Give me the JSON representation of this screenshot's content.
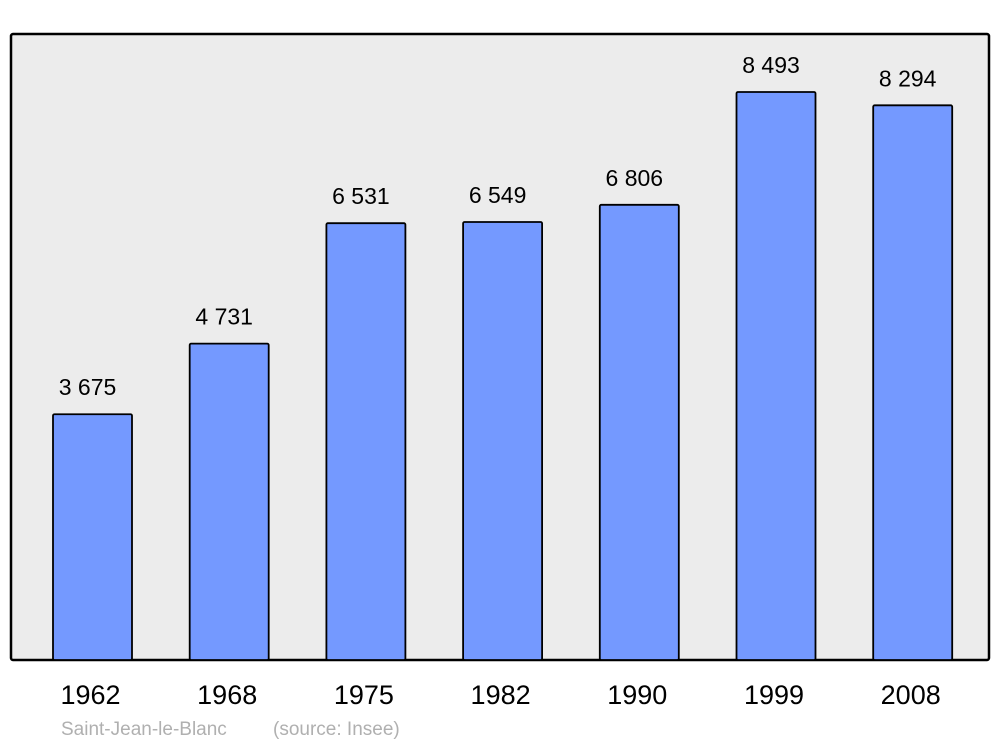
{
  "chart_data": {
    "type": "bar",
    "categories": [
      "1962",
      "1968",
      "1975",
      "1982",
      "1990",
      "1999",
      "2008"
    ],
    "values": [
      3675,
      4731,
      6531,
      6549,
      6806,
      8493,
      8294
    ],
    "data_labels": [
      "3 675",
      "4 731",
      "6 531",
      "6 549",
      "6 806",
      "8 493",
      "8 294"
    ],
    "title": "",
    "xlabel": "",
    "ylabel": "",
    "ylim": [
      0,
      9360
    ],
    "grid": false,
    "legend": "none",
    "bar_color": "#7499ff",
    "plot_background": "#ececec"
  },
  "caption": {
    "place": "Saint-Jean-le-Blanc",
    "source": "(source: Insee)"
  }
}
